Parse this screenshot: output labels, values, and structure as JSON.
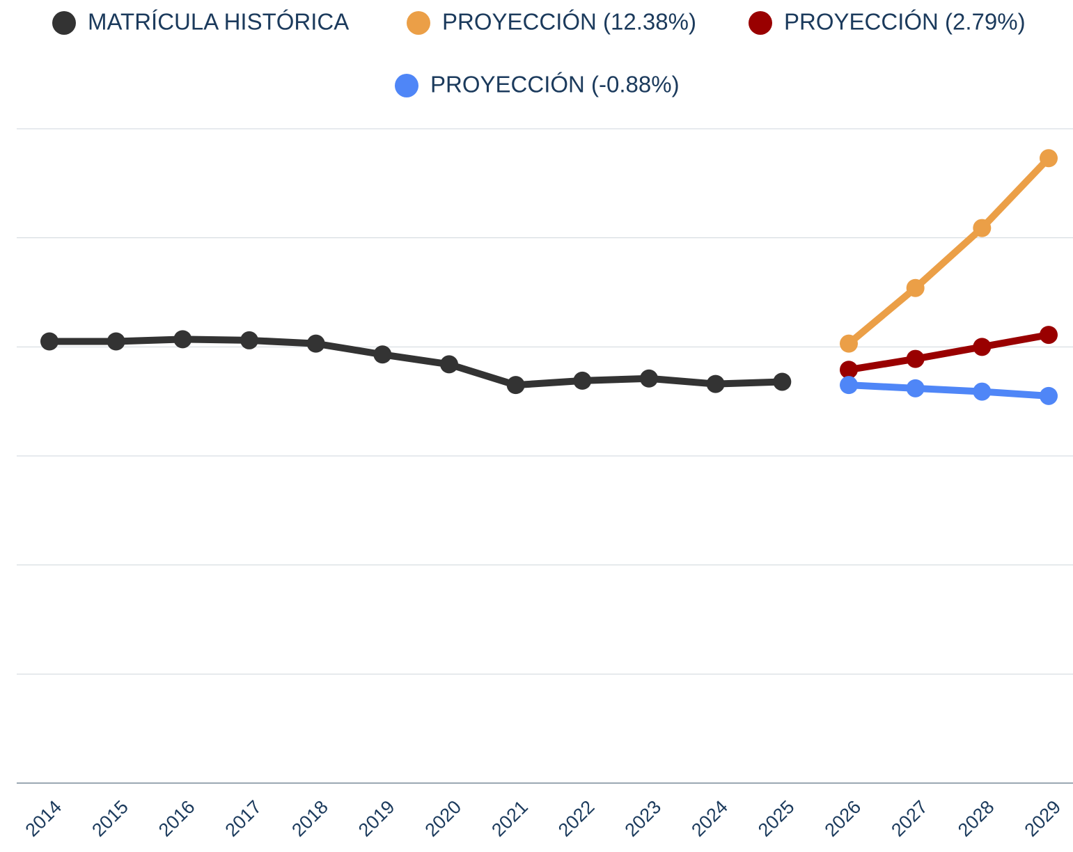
{
  "chart_data": {
    "type": "line",
    "categories": [
      "2014",
      "2015",
      "2016",
      "2017",
      "2018",
      "2019",
      "2020",
      "2021",
      "2022",
      "2023",
      "2024",
      "2025",
      "2026",
      "2027",
      "2028",
      "2029"
    ],
    "series": [
      {
        "name": "MATRÍCULA HISTÓRICA",
        "color": "#333333",
        "values": [
          4.05,
          4.05,
          4.07,
          4.06,
          4.03,
          3.93,
          3.84,
          3.65,
          3.69,
          3.71,
          3.66,
          3.68,
          null,
          null,
          null,
          null
        ]
      },
      {
        "name": "PROYECCIÓN (12.38%)",
        "color": "#eb9f47",
        "values": [
          null,
          null,
          null,
          null,
          null,
          null,
          null,
          null,
          null,
          null,
          null,
          null,
          4.03,
          4.54,
          5.09,
          5.73
        ]
      },
      {
        "name": "PROYECCIÓN (2.79%)",
        "color": "#990000",
        "values": [
          null,
          null,
          null,
          null,
          null,
          null,
          null,
          null,
          null,
          null,
          null,
          null,
          3.79,
          3.89,
          4.0,
          4.11
        ]
      },
      {
        "name": "PROYECCIÓN (-0.88%)",
        "color": "#4f86f7",
        "values": [
          null,
          null,
          null,
          null,
          null,
          null,
          null,
          null,
          null,
          null,
          null,
          null,
          3.65,
          3.62,
          3.59,
          3.55
        ]
      }
    ],
    "ylim": [
      0,
      6
    ],
    "yticks": [
      0,
      1,
      2,
      3,
      4,
      5,
      6
    ],
    "grid": true
  }
}
